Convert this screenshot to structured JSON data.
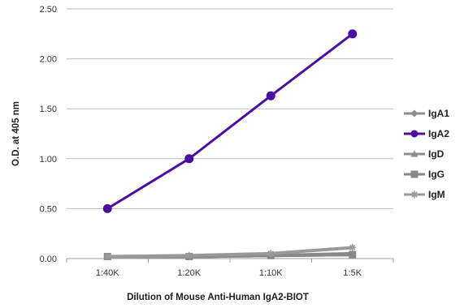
{
  "chart_data": {
    "type": "line",
    "xlabel": "Dilution of Mouse Anti-Human IgA2-BIOT",
    "ylabel": "O.D. at 405 nm",
    "categories": [
      "1:40K",
      "1:20K",
      "1:10K",
      "1:5K"
    ],
    "ylim": [
      0,
      2.5
    ],
    "yticks": [
      "0.00",
      "0.50",
      "1.00",
      "1.50",
      "2.00",
      "2.50"
    ],
    "grid": true,
    "legend_position": "right",
    "series": [
      {
        "name": "IgA1",
        "values": [
          0.02,
          0.02,
          0.03,
          0.04
        ],
        "color": "#8c8c8c",
        "marker": "diamond"
      },
      {
        "name": "IgA2",
        "values": [
          0.5,
          1.0,
          1.63,
          2.25
        ],
        "color": "#4b0fa0",
        "marker": "circle"
      },
      {
        "name": "IgD",
        "values": [
          0.02,
          0.02,
          0.03,
          0.05
        ],
        "color": "#8c8c8c",
        "marker": "triangle"
      },
      {
        "name": "IgG",
        "values": [
          0.02,
          0.02,
          0.03,
          0.04
        ],
        "color": "#888888",
        "marker": "square"
      },
      {
        "name": "IgM",
        "values": [
          0.02,
          0.03,
          0.05,
          0.11
        ],
        "color": "#999999",
        "marker": "star"
      }
    ]
  }
}
